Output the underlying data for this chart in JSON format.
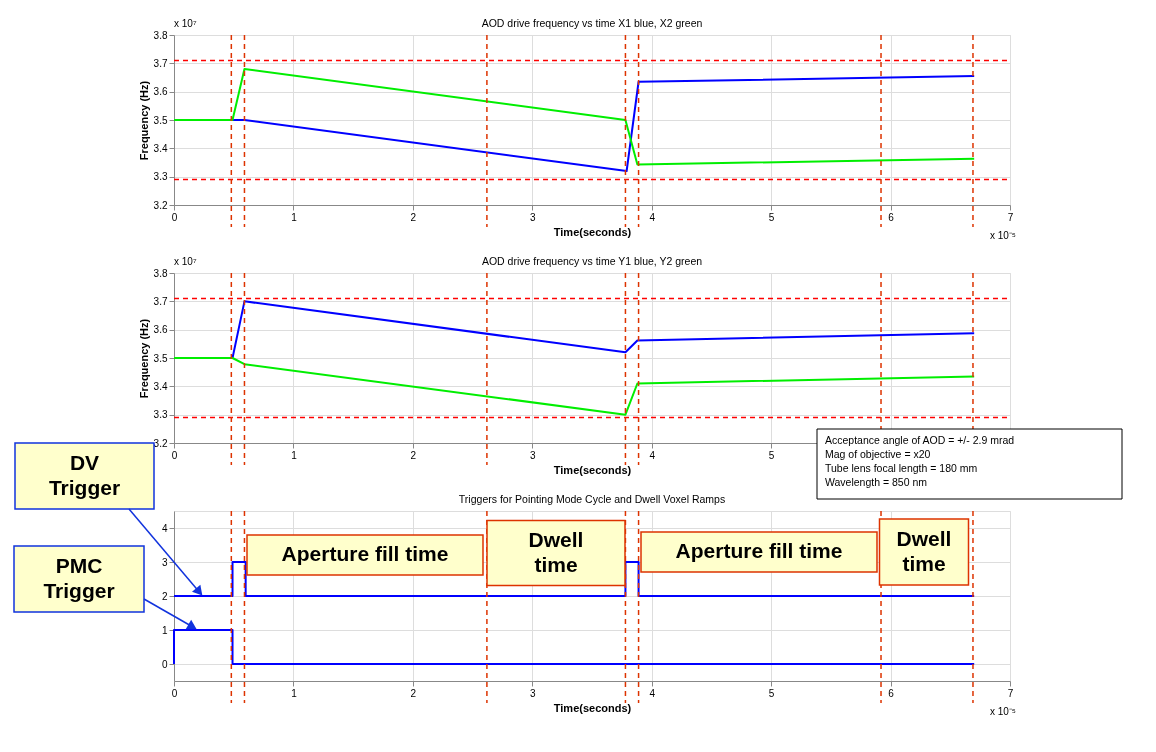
{
  "chart_data": [
    {
      "type": "line",
      "title": "AOD drive frequency vs time X1 blue, X2 green",
      "xlabel": "Time(seconds)",
      "ylabel": "Frequency (Hz)",
      "xlim": [
        0,
        7
      ],
      "xticks": [
        0,
        1,
        2,
        3,
        4,
        5,
        6,
        7
      ],
      "ylim": [
        3.2,
        3.8
      ],
      "yticks": [
        3.2,
        3.3,
        3.4,
        3.5,
        3.6,
        3.7,
        3.8
      ],
      "grid": true,
      "legend": false,
      "series": [
        {
          "color": "#0000ff",
          "x": [
            0,
            0.49,
            0.59,
            3.79,
            3.89,
            6.7
          ],
          "values": [
            3.5,
            3.5,
            3.5,
            3.32,
            3.635,
            3.655
          ]
        },
        {
          "color": "#00ee00",
          "x": [
            0,
            0.49,
            0.59,
            3.78,
            3.88,
            6.7
          ],
          "values": [
            3.5,
            3.5,
            3.68,
            3.5,
            3.343,
            3.363
          ]
        }
      ],
      "ref_lines": [
        {
          "axis": "y",
          "value": 3.71,
          "color": "#ff0000",
          "line_style": "dashed"
        },
        {
          "axis": "y",
          "value": 3.29,
          "color": "#ff0000",
          "line_style": "dashed"
        },
        {
          "axis": "x",
          "value": 0.48,
          "color": "#dd3300",
          "line_style": "dashed"
        },
        {
          "axis": "x",
          "value": 0.59,
          "color": "#dd3300",
          "line_style": "dashed"
        },
        {
          "axis": "x",
          "value": 2.62,
          "color": "#dd3300",
          "line_style": "dashed"
        },
        {
          "axis": "x",
          "value": 3.78,
          "color": "#dd3300",
          "line_style": "dashed"
        },
        {
          "axis": "x",
          "value": 3.89,
          "color": "#dd3300",
          "line_style": "dashed"
        },
        {
          "axis": "x",
          "value": 5.92,
          "color": "#dd3300",
          "line_style": "dashed"
        },
        {
          "axis": "x",
          "value": 6.69,
          "color": "#dd3300",
          "line_style": "dashed"
        }
      ],
      "annotations": [
        "x 10⁷",
        "x 10⁻⁵"
      ]
    },
    {
      "type": "line",
      "title": "AOD drive frequency vs time Y1 blue, Y2 green",
      "xlabel": "Time(seconds)",
      "ylabel": "Frequency (Hz)",
      "xlim": [
        0,
        7
      ],
      "xticks": [
        0,
        1,
        2,
        3,
        4,
        5,
        {
          "value": 6,
          "label": null
        },
        {
          "value": 7,
          "label": null
        }
      ],
      "ylim": [
        3.2,
        3.8
      ],
      "yticks": [
        3.2,
        3.3,
        3.4,
        3.5,
        3.6,
        3.7,
        3.8
      ],
      "grid": true,
      "legend": false,
      "series": [
        {
          "color": "#0000ff",
          "x": [
            0,
            0.49,
            0.59,
            3.78,
            3.88,
            6.7
          ],
          "values": [
            3.5,
            3.5,
            3.7,
            3.52,
            3.562,
            3.587
          ]
        },
        {
          "color": "#00ee00",
          "x": [
            0,
            0.49,
            0.59,
            3.78,
            3.88,
            6.7
          ],
          "values": [
            3.5,
            3.5,
            3.478,
            3.3,
            3.41,
            3.435
          ]
        }
      ],
      "ref_lines": [
        {
          "axis": "y",
          "value": 3.71,
          "color": "#ff0000",
          "line_style": "dashed"
        },
        {
          "axis": "y",
          "value": 3.29,
          "color": "#ff0000",
          "line_style": "dashed"
        },
        {
          "axis": "x",
          "value": 0.48,
          "color": "#dd3300",
          "line_style": "dashed"
        },
        {
          "axis": "x",
          "value": 0.59,
          "color": "#dd3300",
          "line_style": "dashed"
        },
        {
          "axis": "x",
          "value": 2.62,
          "color": "#dd3300",
          "line_style": "dashed"
        },
        {
          "axis": "x",
          "value": 3.78,
          "color": "#dd3300",
          "line_style": "dashed"
        },
        {
          "axis": "x",
          "value": 3.89,
          "color": "#dd3300",
          "line_style": "dashed"
        },
        {
          "axis": "x",
          "value": 5.92,
          "color": "#dd3300",
          "line_style": "dashed"
        },
        {
          "axis": "x",
          "value": 6.69,
          "color": "#dd3300",
          "line_style": "dashed"
        }
      ],
      "annotations": [
        "x 10⁷",
        "Acceptance angle of AOD  = +/- 2.9 mrad",
        "Mag of objective = x20",
        "Tube lens focal length = 180 mm",
        "Wavelength = 850 nm"
      ]
    },
    {
      "type": "line",
      "title": "Triggers for Pointing Mode Cycle and Dwell Voxel Ramps",
      "xlabel": "Time(seconds)",
      "xlim": [
        0,
        7
      ],
      "xticks": [
        0,
        1,
        2,
        3,
        4,
        5,
        6,
        7
      ],
      "ylim": [
        -0.5,
        4.5
      ],
      "yticks": [
        0,
        1,
        2,
        3,
        4
      ],
      "grid": true,
      "legend": false,
      "series": [
        {
          "color": "#0000ff",
          "x": [
            0,
            0.49,
            0.49,
            0.6,
            0.6,
            3.78,
            3.78,
            3.89,
            3.89,
            6.7
          ],
          "values": [
            2,
            2,
            3,
            3,
            2,
            2,
            3,
            3,
            2,
            2
          ]
        },
        {
          "color": "#0000ff",
          "x": [
            0,
            0,
            0.49,
            0.49,
            6.7
          ],
          "values": [
            0,
            1,
            1,
            0,
            0
          ]
        }
      ],
      "ref_lines": [
        {
          "axis": "x",
          "value": 0.48,
          "color": "#dd3300",
          "line_style": "dashed"
        },
        {
          "axis": "x",
          "value": 0.59,
          "color": "#dd3300",
          "line_style": "dashed"
        },
        {
          "axis": "x",
          "value": 2.62,
          "color": "#dd3300",
          "line_style": "dashed"
        },
        {
          "axis": "x",
          "value": 3.78,
          "color": "#dd3300",
          "line_style": "dashed"
        },
        {
          "axis": "x",
          "value": 3.89,
          "color": "#dd3300",
          "line_style": "dashed"
        },
        {
          "axis": "x",
          "value": 5.92,
          "color": "#dd3300",
          "line_style": "dashed"
        },
        {
          "axis": "x",
          "value": 6.69,
          "color": "#dd3300",
          "line_style": "dashed"
        }
      ],
      "annotations": [
        "x 10⁻⁵",
        {
          "text": "DV Trigger",
          "x": 0.23,
          "y": 2
        },
        "PMC Trigger",
        "Aperture fill time",
        "Dwell time",
        "Aperture fill time",
        "Dwell time"
      ]
    }
  ]
}
